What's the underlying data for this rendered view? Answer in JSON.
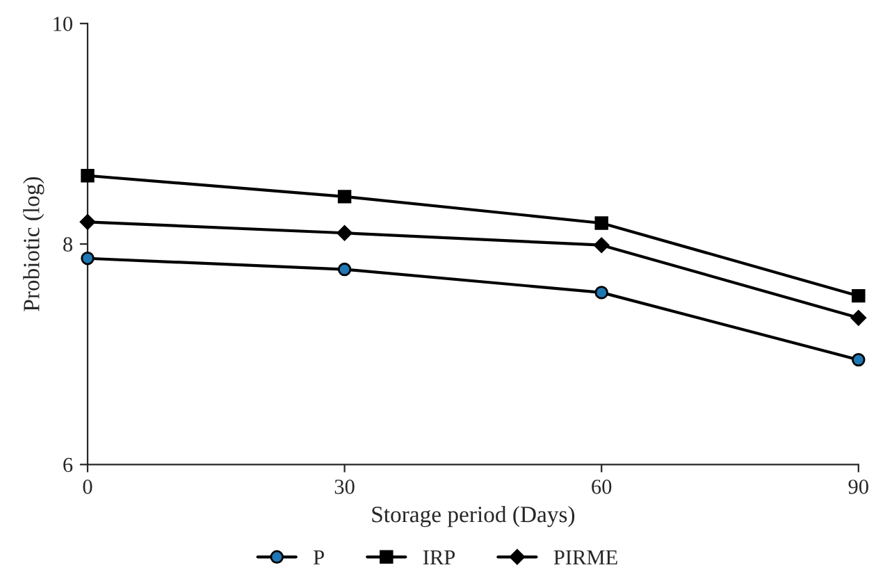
{
  "chart_data": {
    "type": "line",
    "xlabel": "Storage period (Days)",
    "ylabel": "Probiotic (log)",
    "x": [
      0,
      30,
      60,
      90
    ],
    "series": [
      {
        "name": "P",
        "color": "#000000",
        "marker": "circle",
        "colors": [
          "#1f77b4",
          "#1f77b4",
          "#1f77b4",
          "#1f77b4"
        ],
        "values": [
          7.87,
          7.77,
          7.56,
          6.95
        ]
      },
      {
        "name": "IRP",
        "color": "#000000",
        "marker": "square",
        "values": [
          8.62,
          8.43,
          8.19,
          7.53
        ]
      },
      {
        "name": "PIRME",
        "color": "#000000",
        "marker": "diamond",
        "values": [
          8.2,
          8.1,
          7.99,
          7.33
        ]
      }
    ],
    "xlim": [
      0,
      90
    ],
    "xticks": [
      0,
      30,
      60,
      90
    ],
    "ylim": [
      6,
      10
    ],
    "yticks": [
      6,
      8,
      10
    ],
    "grid": false,
    "legend": "bottom"
  }
}
